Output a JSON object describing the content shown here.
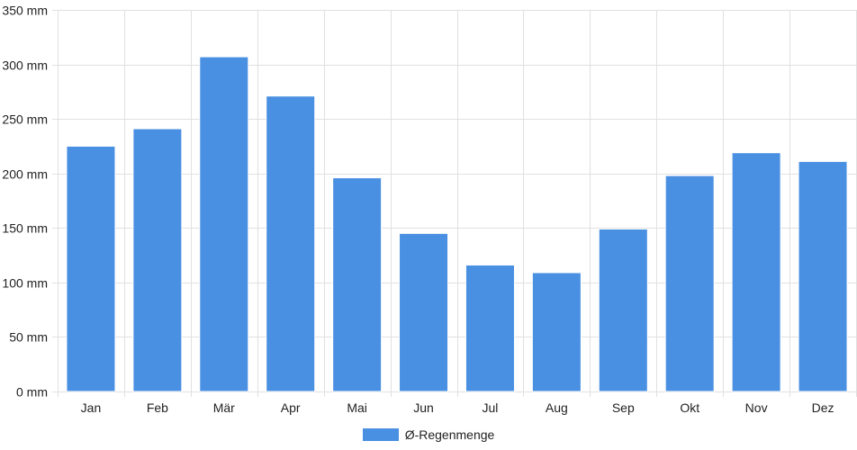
{
  "chart_data": {
    "type": "bar",
    "categories": [
      "Jan",
      "Feb",
      "Mär",
      "Apr",
      "Mai",
      "Jun",
      "Jul",
      "Aug",
      "Sep",
      "Okt",
      "Nov",
      "Dez"
    ],
    "series": [
      {
        "name": "Ø-Regenmenge",
        "values": [
          225,
          241,
          307,
          271,
          196,
          145,
          116,
          109,
          149,
          198,
          219,
          211
        ]
      }
    ],
    "y_unit": "mm",
    "ylim": [
      0,
      350
    ],
    "yticks": [
      0,
      50,
      100,
      150,
      200,
      250,
      300,
      350
    ],
    "ytick_labels": [
      "0 mm",
      "50 mm",
      "100 mm",
      "150 mm",
      "200 mm",
      "250 mm",
      "300 mm",
      "350 mm"
    ],
    "grid": true,
    "legend_position": "bottom",
    "colors": {
      "bar": "#4a90e2",
      "bar_border": "#ffffff",
      "grid": "#e0e0e0"
    }
  }
}
